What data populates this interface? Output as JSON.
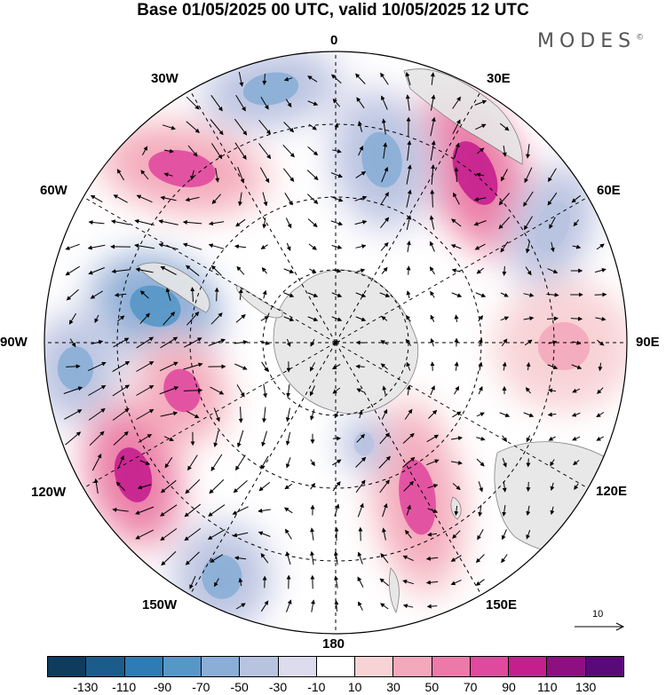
{
  "title": "Base 01/05/2025 00 UTC, valid 10/05/2025 12 UTC",
  "brand": "MODES",
  "brand_mark": "©",
  "longitude_labels": {
    "n0": "0",
    "n30e": "30E",
    "n60e": "60E",
    "n90e": "90E",
    "n120e": "120E",
    "n150e": "150E",
    "n180": "180",
    "n150w": "150W",
    "n120w": "120W",
    "n90w": "90W",
    "n60w": "60W",
    "n30w": "30W"
  },
  "reference_vector": "10",
  "colorbar": {
    "colors": [
      "#0f3b5c",
      "#1c5c8c",
      "#2f7bb3",
      "#5797c8",
      "#8aaed6",
      "#b8c3e0",
      "#dcdcee",
      "#ffffff",
      "#f8d3d6",
      "#f3a9bb",
      "#eb7aa8",
      "#e04a9e",
      "#c51f8e",
      "#8c1080",
      "#5a0a78"
    ],
    "tick_labels": [
      "-130",
      "-110",
      "-90",
      "-70",
      "-50",
      "-30",
      "-10",
      "10",
      "30",
      "50",
      "70",
      "90",
      "110",
      "130"
    ]
  },
  "map_colors": {
    "land": "#e6e6e6",
    "ocean": "#ffffff",
    "grid": "#000000"
  },
  "anomaly_centers": [
    {
      "label": "center-30e-strong-positive",
      "value": 90
    },
    {
      "label": "center-0-negative",
      "value": -70
    },
    {
      "label": "center-20w-negative",
      "value": -70
    },
    {
      "label": "center-50w-positive",
      "value": 70
    },
    {
      "label": "center-60e-negative",
      "value": -50
    },
    {
      "label": "center-80w-negative",
      "value": -90
    },
    {
      "label": "center-90w-negative",
      "value": -70
    },
    {
      "label": "center-105w-positive",
      "value": 70
    },
    {
      "label": "center-120w-positive",
      "value": 90
    },
    {
      "label": "center-160w-negative",
      "value": -70
    },
    {
      "label": "center-150e-positive",
      "value": 70
    },
    {
      "label": "center-100e-positive",
      "value": 30
    },
    {
      "label": "center-170e-negative",
      "value": -50
    }
  ]
}
